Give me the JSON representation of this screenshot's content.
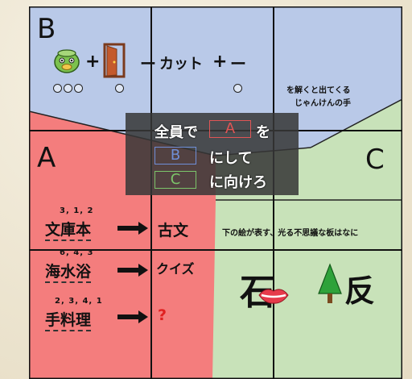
{
  "regions": {
    "b": {
      "letter": "B",
      "color": "#b9c9e8"
    },
    "a": {
      "letter": "A",
      "color": "#f47d7d"
    },
    "c": {
      "letter": "C",
      "color": "#c8e2b9"
    }
  },
  "puzzle_b": {
    "plus1": "+",
    "minus1": "ー",
    "text_cut": "カット",
    "plus2": "+",
    "minus2": "ー",
    "caption_line1": "を解くと出てくる",
    "caption_line2": "じゃんけんの手",
    "icons": [
      "kappa-icon",
      "door-icon"
    ]
  },
  "puzzle_a": {
    "rows": [
      {
        "reading": "3, 1, 2",
        "word": "文庫本",
        "answer": "古文"
      },
      {
        "reading": "6, 4, 3",
        "word": "海水浴",
        "answer": "クイズ"
      },
      {
        "reading": "2, 3, 4, 1",
        "word": "手料理",
        "answer": "?"
      }
    ]
  },
  "puzzle_c": {
    "question": "下の絵が表す、光る不思議な板はなに",
    "glyph_left": "石",
    "glyph_right": "反",
    "icons": [
      "lips-icon",
      "tree-icon"
    ]
  },
  "hint": {
    "line1_prefix": "全員で",
    "slot_a": "A",
    "line1_suffix": "を",
    "slot_b": "B",
    "line2_suffix": "にして",
    "slot_c": "C",
    "line3_suffix": "に向けろ",
    "slot_a_color": "#e05555",
    "slot_b_color": "#6f8fd8",
    "slot_c_color": "#7cc56a"
  }
}
